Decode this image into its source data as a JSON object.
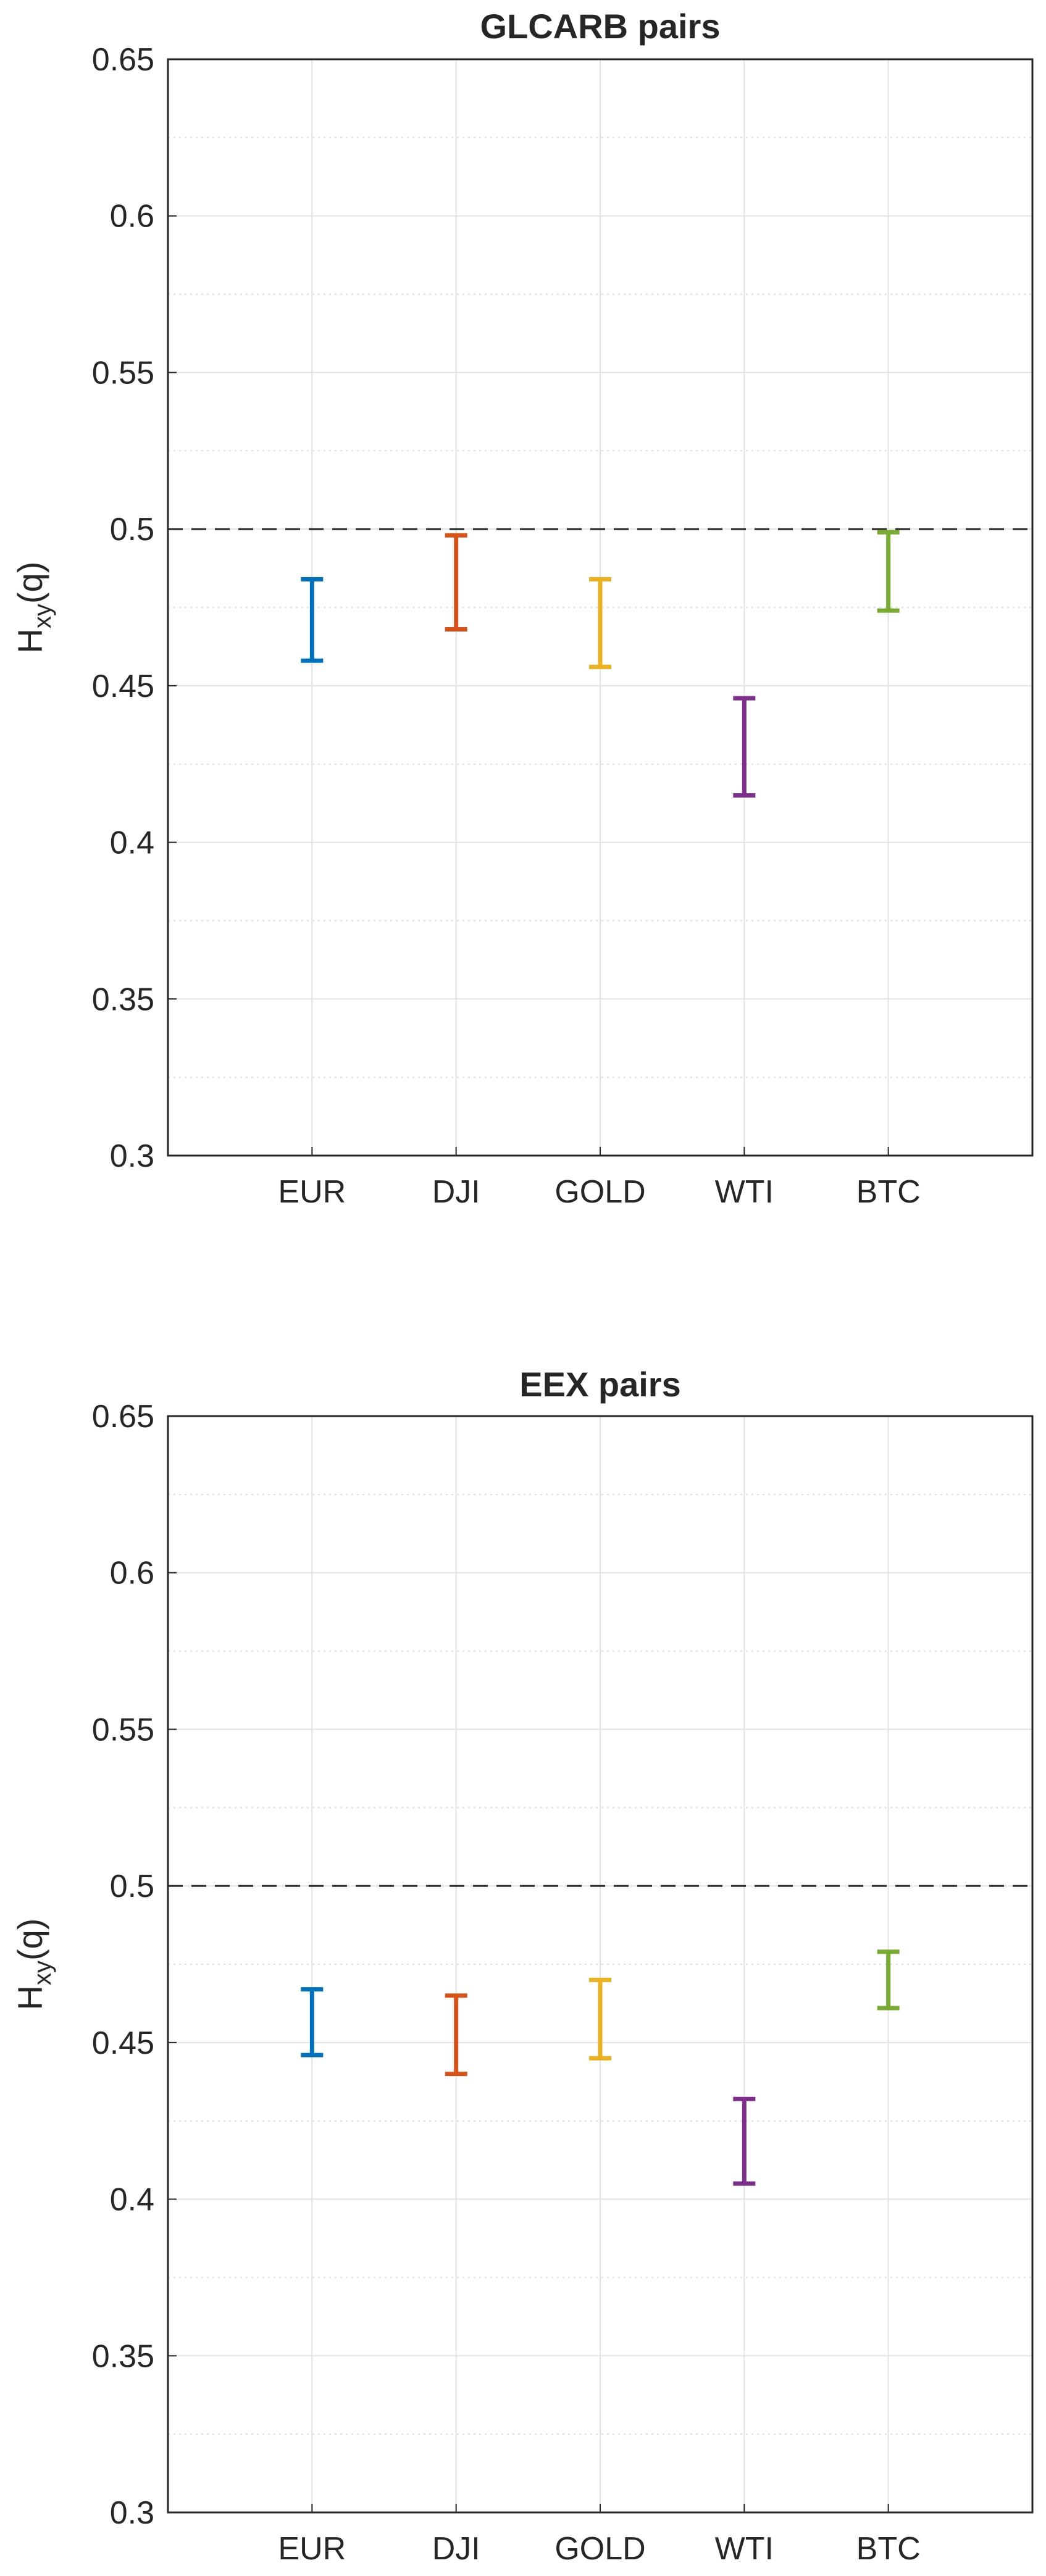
{
  "chart_data": [
    {
      "type": "errorbar",
      "title": "GLCARB pairs",
      "ylabel_main": "H",
      "ylabel_sub": "xy",
      "ylabel_suffix": "(q)",
      "categories": [
        "EUR",
        "DJI",
        "GOLD",
        "WTI",
        "BTC"
      ],
      "ylim": [
        0.3,
        0.65
      ],
      "yticks": [
        "0.3",
        "0.35",
        "0.4",
        "0.45",
        "0.5",
        "0.55",
        "0.6",
        "0.65"
      ],
      "reference_line": 0.5,
      "grid": true,
      "minor_grid": true,
      "series": [
        {
          "category": "EUR",
          "low": 0.458,
          "high": 0.484,
          "color": "#0072BD"
        },
        {
          "category": "DJI",
          "low": 0.468,
          "high": 0.498,
          "color": "#D95319"
        },
        {
          "category": "GOLD",
          "low": 0.456,
          "high": 0.484,
          "color": "#EDB120"
        },
        {
          "category": "WTI",
          "low": 0.415,
          "high": 0.446,
          "color": "#7E2F8E"
        },
        {
          "category": "BTC",
          "low": 0.474,
          "high": 0.499,
          "color": "#77AC30"
        }
      ]
    },
    {
      "type": "errorbar",
      "title": "EEX pairs",
      "ylabel_main": "H",
      "ylabel_sub": "xy",
      "ylabel_suffix": "(q)",
      "categories": [
        "EUR",
        "DJI",
        "GOLD",
        "WTI",
        "BTC"
      ],
      "ylim": [
        0.3,
        0.65
      ],
      "yticks": [
        "0.3",
        "0.35",
        "0.4",
        "0.45",
        "0.5",
        "0.55",
        "0.6",
        "0.65"
      ],
      "reference_line": 0.5,
      "grid": true,
      "minor_grid": true,
      "series": [
        {
          "category": "EUR",
          "low": 0.446,
          "high": 0.467,
          "color": "#0072BD"
        },
        {
          "category": "DJI",
          "low": 0.44,
          "high": 0.465,
          "color": "#D95319"
        },
        {
          "category": "GOLD",
          "low": 0.445,
          "high": 0.47,
          "color": "#EDB120"
        },
        {
          "category": "WTI",
          "low": 0.405,
          "high": 0.432,
          "color": "#7E2F8E"
        },
        {
          "category": "BTC",
          "low": 0.461,
          "high": 0.479,
          "color": "#77AC30"
        }
      ]
    }
  ]
}
